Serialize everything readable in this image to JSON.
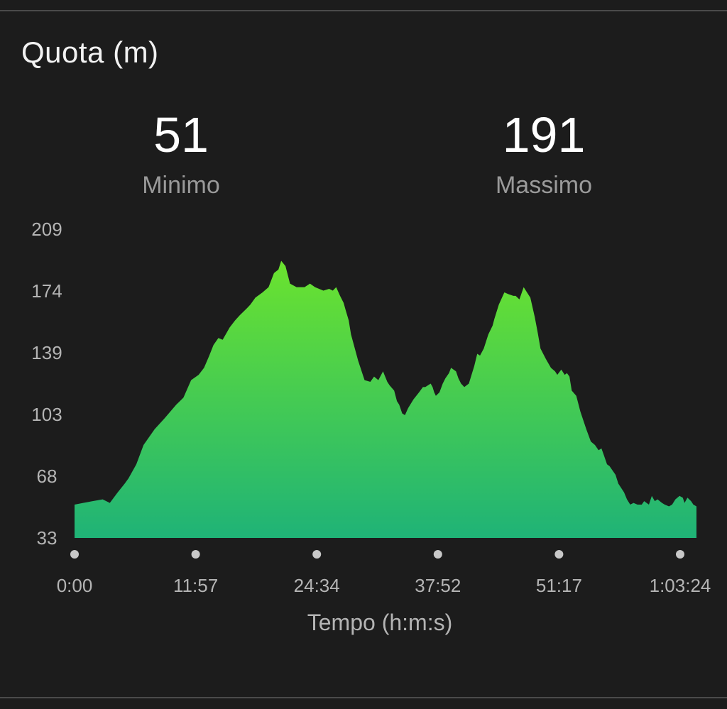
{
  "card": {
    "title": "Quota (m)",
    "min_value": "51",
    "min_label": "Minimo",
    "max_value": "191",
    "max_label": "Massimo"
  },
  "chart_data": {
    "type": "area",
    "title": "Quota (m)",
    "xlabel": "Tempo (h:m:s)",
    "ylabel": "",
    "y_ticks": [
      "209",
      "174",
      "139",
      "103",
      "68",
      "33"
    ],
    "x_ticks": [
      "0:00",
      "11:57",
      "24:34",
      "37:52",
      "51:17",
      "1:03:24"
    ],
    "ylim": [
      33,
      209
    ],
    "xlim_seconds": [
      0,
      3804
    ],
    "grid": false,
    "legend": "none",
    "colors": {
      "fill_top": "#6be32e",
      "fill_bottom": "#1fb377",
      "background": "#1c1c1c"
    },
    "series": [
      {
        "x_seconds": [
          0,
          53,
          172,
          216,
          264,
          307,
          330,
          378,
          422,
          490,
          549,
          622,
          666,
          713,
          759,
          792,
          824,
          850,
          880,
          906,
          949,
          982,
          1011,
          1055,
          1075,
          1106,
          1150,
          1187,
          1220,
          1247,
          1264,
          1290,
          1318,
          1358,
          1407,
          1440,
          1471,
          1522,
          1557,
          1580,
          1600,
          1624,
          1646,
          1658,
          1677,
          1691,
          1735,
          1774,
          1809,
          1832,
          1858,
          1887,
          1913,
          1927,
          1955,
          1972,
          1986,
          2004,
          2021,
          2040,
          2073,
          2107,
          2131,
          2145,
          2178,
          2190,
          2200,
          2210,
          2232,
          2252,
          2268,
          2290,
          2303,
          2333,
          2348,
          2364,
          2384,
          2412,
          2445,
          2463,
          2480,
          2503,
          2531,
          2557,
          2568,
          2595,
          2629,
          2653,
          2684,
          2698,
          2721,
          2747,
          2788,
          2815,
          2833,
          2850,
          2883,
          2914,
          2939,
          2953,
          2977,
          2998,
          3012,
          3027,
          3041,
          3069,
          3094,
          3130,
          3158,
          3183,
          3205,
          3223,
          3238,
          3257,
          3272,
          3309,
          3326,
          3361,
          3379,
          3399,
          3419,
          3443,
          3469,
          3484,
          3513,
          3531,
          3549,
          3566,
          3593,
          3610,
          3636,
          3655,
          3675,
          3700,
          3720,
          3731,
          3749,
          3771,
          3785,
          3804
        ],
        "y_values": [
          52,
          53,
          55,
          53,
          59,
          64,
          67,
          75,
          86,
          95,
          101,
          109,
          113,
          123,
          126,
          130,
          137,
          143,
          147,
          146,
          153,
          157,
          160,
          164,
          166,
          170,
          173,
          176,
          184,
          186,
          191,
          188,
          178,
          176,
          176,
          178,
          176,
          174,
          175,
          174,
          176,
          171,
          167,
          163,
          157,
          149,
          134,
          123,
          122,
          125,
          123,
          128,
          122,
          120,
          117,
          111,
          109,
          104,
          103,
          107,
          112,
          116,
          119,
          119,
          121,
          119,
          116,
          114,
          116,
          121,
          124,
          127,
          130,
          128,
          124,
          121,
          119,
          121,
          131,
          138,
          137,
          141,
          149,
          154,
          158,
          166,
          173,
          172,
          171,
          171,
          169,
          176,
          170,
          159,
          150,
          141,
          135,
          130,
          128,
          126,
          129,
          126,
          127,
          125,
          117,
          114,
          105,
          95,
          88,
          86,
          83,
          84,
          80,
          75,
          74,
          69,
          64,
          59,
          55,
          52,
          53,
          52,
          52,
          54,
          52,
          57,
          54,
          55,
          53,
          52,
          51,
          52,
          55,
          57,
          56,
          53,
          56,
          54,
          52,
          51
        ]
      }
    ]
  }
}
